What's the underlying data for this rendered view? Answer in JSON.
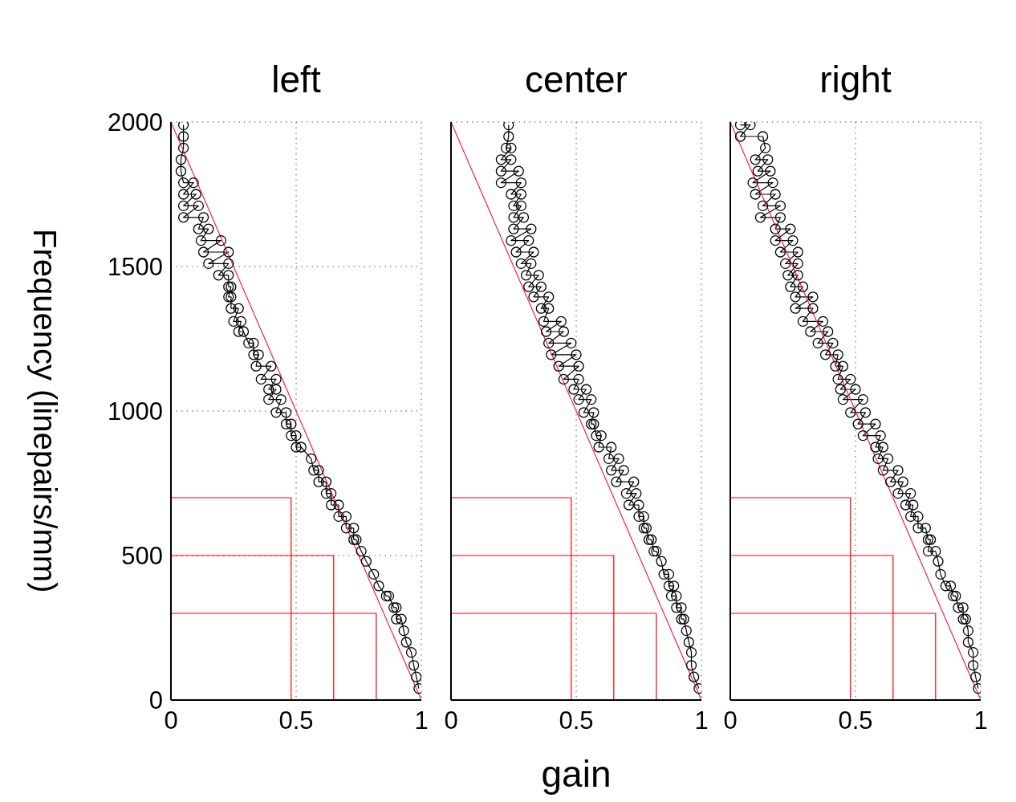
{
  "chart_data": [
    {
      "type": "line",
      "title": "left",
      "ylabel": "Frequency (linepairs/mm)",
      "xlim": [
        0,
        1
      ],
      "xticks": [
        0,
        0.5,
        1
      ],
      "ylim": [
        0,
        2000
      ],
      "yticks": [
        0,
        500,
        1000,
        1500,
        2000
      ],
      "grid": true,
      "series": [
        {
          "color": "#000000",
          "marker": "circle",
          "x": [
            0.05,
            0.05,
            0.05,
            0.04,
            0.04,
            0.05,
            0.09,
            0.05,
            0.1,
            0.05,
            0.11,
            0.05,
            0.13,
            0.11,
            0.15,
            0.12,
            0.2,
            0.13,
            0.23,
            0.15,
            0.23,
            0.19,
            0.23,
            0.23,
            0.24,
            0.23,
            0.24,
            0.24,
            0.27,
            0.25,
            0.28,
            0.27,
            0.29,
            0.31,
            0.33,
            0.33,
            0.35,
            0.34,
            0.4,
            0.36,
            0.42,
            0.39,
            0.42,
            0.39,
            0.44,
            0.42,
            0.46,
            0.46,
            0.48,
            0.48,
            0.5,
            0.5,
            0.52,
            0.56,
            0.57,
            0.59,
            0.59,
            0.62,
            0.62,
            0.64,
            0.64,
            0.67,
            0.67,
            0.7,
            0.7,
            0.73,
            0.73,
            0.74,
            0.76,
            0.78,
            0.81,
            0.83,
            0.86,
            0.87,
            0.89,
            0.9,
            0.9,
            0.92,
            0.93,
            0.94,
            0.96,
            0.97,
            0.98,
            0.99
          ],
          "values": [
            1990,
            1950,
            1910,
            1870,
            1830,
            1790,
            1790,
            1750,
            1750,
            1710,
            1710,
            1670,
            1670,
            1630,
            1630,
            1590,
            1590,
            1550,
            1550,
            1510,
            1510,
            1470,
            1470,
            1430,
            1430,
            1395,
            1395,
            1355,
            1355,
            1310,
            1310,
            1275,
            1275,
            1235,
            1235,
            1195,
            1195,
            1155,
            1155,
            1110,
            1110,
            1075,
            1075,
            1040,
            1040,
            995,
            995,
            955,
            955,
            915,
            915,
            875,
            875,
            835,
            795,
            795,
            755,
            755,
            715,
            715,
            675,
            675,
            635,
            635,
            595,
            595,
            555,
            555,
            515,
            480,
            435,
            395,
            360,
            360,
            320,
            320,
            280,
            280,
            240,
            200,
            165,
            120,
            80,
            40
          ]
        },
        {
          "color": "#ee2255",
          "marker": "none",
          "x": [
            0,
            1
          ],
          "values": [
            2000,
            0
          ]
        },
        {
          "color": "#ff0000",
          "marker": "none",
          "x": [
            0,
            0.48,
            0.48
          ],
          "values": [
            700,
            700,
            0
          ]
        },
        {
          "color": "#ff0000",
          "marker": "none",
          "x": [
            0,
            0.65,
            0.65
          ],
          "values": [
            500,
            500,
            0
          ]
        },
        {
          "color": "#ff0000",
          "marker": "none",
          "x": [
            0,
            0.82,
            0.82
          ],
          "values": [
            300,
            300,
            0
          ]
        }
      ]
    },
    {
      "type": "line",
      "title": "center",
      "xlabel": "gain",
      "xlim": [
        0,
        1
      ],
      "xticks": [
        0,
        0.5,
        1
      ],
      "ylim": [
        0,
        2000
      ],
      "yticks": [
        0,
        500,
        1000,
        1500,
        2000
      ],
      "grid": true,
      "tick_labels": "x",
      "series": [
        {
          "color": "#000000",
          "marker": "circle",
          "x": [
            0.23,
            0.23,
            0.22,
            0.24,
            0.2,
            0.24,
            0.2,
            0.27,
            0.2,
            0.28,
            0.24,
            0.28,
            0.25,
            0.28,
            0.25,
            0.29,
            0.25,
            0.32,
            0.24,
            0.31,
            0.26,
            0.33,
            0.28,
            0.32,
            0.3,
            0.35,
            0.31,
            0.36,
            0.33,
            0.39,
            0.36,
            0.39,
            0.37,
            0.44,
            0.38,
            0.45,
            0.39,
            0.48,
            0.4,
            0.5,
            0.43,
            0.51,
            0.45,
            0.51,
            0.49,
            0.54,
            0.51,
            0.56,
            0.53,
            0.57,
            0.56,
            0.57,
            0.58,
            0.6,
            0.59,
            0.64,
            0.63,
            0.67,
            0.64,
            0.69,
            0.66,
            0.73,
            0.7,
            0.74,
            0.71,
            0.75,
            0.75,
            0.77,
            0.77,
            0.78,
            0.79,
            0.8,
            0.81,
            0.82,
            0.84,
            0.85,
            0.87,
            0.87,
            0.89,
            0.88,
            0.9,
            0.9,
            0.92,
            0.92,
            0.93,
            0.94,
            0.95,
            0.96,
            0.96,
            0.97,
            0.99
          ],
          "values": [
            1990,
            1950,
            1910,
            1910,
            1870,
            1870,
            1830,
            1830,
            1790,
            1790,
            1750,
            1750,
            1710,
            1710,
            1670,
            1670,
            1630,
            1630,
            1590,
            1590,
            1550,
            1550,
            1510,
            1510,
            1470,
            1470,
            1430,
            1430,
            1395,
            1395,
            1355,
            1355,
            1310,
            1310,
            1275,
            1275,
            1235,
            1235,
            1195,
            1195,
            1155,
            1155,
            1110,
            1110,
            1075,
            1075,
            1040,
            1040,
            995,
            995,
            955,
            955,
            915,
            915,
            875,
            875,
            835,
            835,
            795,
            795,
            755,
            755,
            715,
            715,
            675,
            675,
            635,
            635,
            595,
            595,
            555,
            555,
            515,
            515,
            480,
            435,
            435,
            395,
            395,
            360,
            360,
            320,
            320,
            280,
            280,
            240,
            200,
            165,
            120,
            80,
            40
          ]
        },
        {
          "color": "#ee2255",
          "marker": "none",
          "x": [
            0,
            1
          ],
          "values": [
            2000,
            0
          ]
        },
        {
          "color": "#ff0000",
          "marker": "none",
          "x": [
            0,
            0.48,
            0.48
          ],
          "values": [
            700,
            700,
            0
          ]
        },
        {
          "color": "#ff0000",
          "marker": "none",
          "x": [
            0,
            0.65,
            0.65
          ],
          "values": [
            500,
            500,
            0
          ]
        },
        {
          "color": "#ff0000",
          "marker": "none",
          "x": [
            0,
            0.82,
            0.82
          ],
          "values": [
            300,
            300,
            0
          ]
        }
      ]
    },
    {
      "type": "line",
      "title": "right",
      "xlim": [
        0,
        1
      ],
      "xticks": [
        0,
        0.5,
        1
      ],
      "ylim": [
        0,
        2000
      ],
      "yticks": [
        0,
        500,
        1000,
        1500,
        2000
      ],
      "grid": true,
      "tick_labels": "x",
      "series": [
        {
          "color": "#000000",
          "marker": "circle",
          "x": [
            0.04,
            0.08,
            0.04,
            0.13,
            0.14,
            0.1,
            0.15,
            0.11,
            0.16,
            0.09,
            0.17,
            0.1,
            0.18,
            0.13,
            0.2,
            0.12,
            0.2,
            0.18,
            0.24,
            0.18,
            0.25,
            0.2,
            0.27,
            0.22,
            0.27,
            0.23,
            0.27,
            0.24,
            0.29,
            0.26,
            0.33,
            0.26,
            0.33,
            0.29,
            0.37,
            0.32,
            0.39,
            0.35,
            0.41,
            0.38,
            0.43,
            0.42,
            0.45,
            0.43,
            0.48,
            0.44,
            0.5,
            0.45,
            0.53,
            0.48,
            0.54,
            0.51,
            0.58,
            0.53,
            0.6,
            0.58,
            0.61,
            0.59,
            0.63,
            0.61,
            0.67,
            0.64,
            0.69,
            0.67,
            0.72,
            0.7,
            0.73,
            0.72,
            0.75,
            0.75,
            0.78,
            0.79,
            0.8,
            0.79,
            0.82,
            0.83,
            0.84,
            0.86,
            0.88,
            0.89,
            0.9,
            0.91,
            0.93,
            0.93,
            0.94,
            0.95,
            0.95,
            0.97,
            0.97,
            0.98,
            0.99
          ],
          "values": [
            1990,
            1990,
            1950,
            1950,
            1910,
            1870,
            1870,
            1830,
            1830,
            1790,
            1790,
            1750,
            1750,
            1710,
            1710,
            1670,
            1670,
            1630,
            1630,
            1590,
            1590,
            1550,
            1550,
            1510,
            1510,
            1470,
            1470,
            1430,
            1430,
            1395,
            1395,
            1355,
            1355,
            1310,
            1310,
            1275,
            1275,
            1235,
            1235,
            1195,
            1195,
            1155,
            1155,
            1110,
            1110,
            1075,
            1075,
            1040,
            1040,
            995,
            995,
            955,
            955,
            915,
            915,
            875,
            875,
            835,
            835,
            795,
            795,
            755,
            755,
            715,
            715,
            675,
            675,
            635,
            635,
            595,
            595,
            555,
            555,
            515,
            515,
            480,
            435,
            395,
            395,
            360,
            360,
            320,
            320,
            280,
            280,
            240,
            200,
            165,
            120,
            80,
            40
          ]
        },
        {
          "color": "#ee2255",
          "marker": "none",
          "x": [
            0,
            1
          ],
          "values": [
            2000,
            0
          ]
        },
        {
          "color": "#ff0000",
          "marker": "none",
          "x": [
            0,
            0.48,
            0.48
          ],
          "values": [
            700,
            700,
            0
          ]
        },
        {
          "color": "#ff0000",
          "marker": "none",
          "x": [
            0,
            0.65,
            0.65
          ],
          "values": [
            500,
            500,
            0
          ]
        },
        {
          "color": "#ff0000",
          "marker": "none",
          "x": [
            0,
            0.82,
            0.82
          ],
          "values": [
            300,
            300,
            0
          ]
        }
      ]
    }
  ]
}
